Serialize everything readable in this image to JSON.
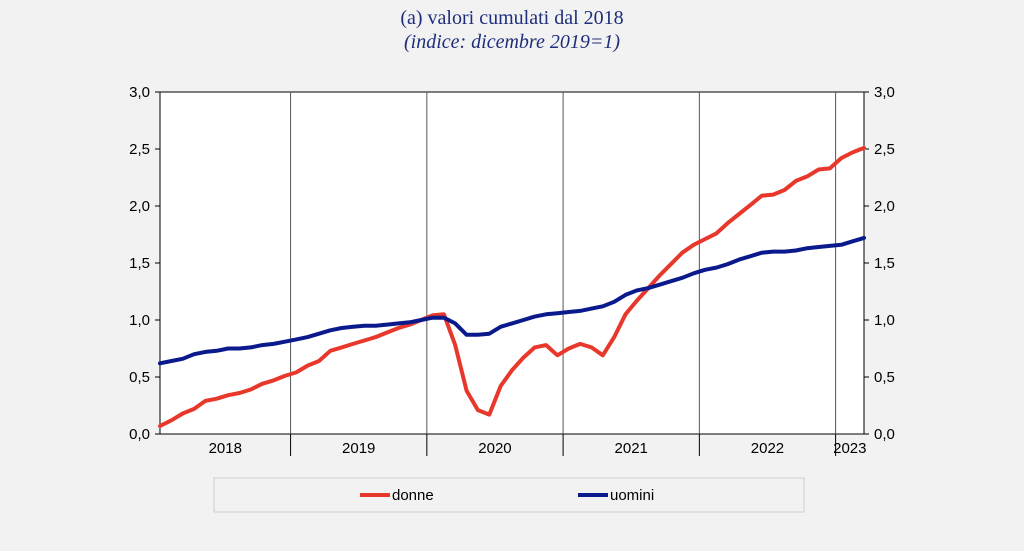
{
  "title": "(a) valori cumulati dal 2018",
  "subtitle": "(indice: dicembre 2019=1)",
  "chart_data": {
    "type": "line",
    "title": "(a) valori cumulati dal 2018",
    "subtitle": "(indice: dicembre 2019=1)",
    "xlabel": "",
    "ylabel": "",
    "x_range": [
      "2018-01",
      "2023-03"
    ],
    "ylim": [
      0,
      3
    ],
    "y_ticks": [
      "0,0",
      "0,5",
      "1,0",
      "1,5",
      "2,0",
      "2,5",
      "3,0"
    ],
    "x_tick_labels": [
      "2018",
      "2019",
      "2020",
      "2021",
      "2022",
      "2023"
    ],
    "year_boundaries": [
      "2019-01",
      "2020-01",
      "2021-01",
      "2022-01",
      "2023-01"
    ],
    "grid": false,
    "legend_position": "bottom",
    "series": [
      {
        "name": "donne",
        "color": "#e8382c",
        "points": [
          [
            "2018-01",
            0.07
          ],
          [
            "2018-02",
            0.12
          ],
          [
            "2018-03",
            0.18
          ],
          [
            "2018-04",
            0.22
          ],
          [
            "2018-05",
            0.29
          ],
          [
            "2018-06",
            0.31
          ],
          [
            "2018-07",
            0.34
          ],
          [
            "2018-08",
            0.36
          ],
          [
            "2018-09",
            0.39
          ],
          [
            "2018-10",
            0.44
          ],
          [
            "2018-11",
            0.47
          ],
          [
            "2018-12",
            0.51
          ],
          [
            "2019-01",
            0.54
          ],
          [
            "2019-02",
            0.6
          ],
          [
            "2019-03",
            0.64
          ],
          [
            "2019-04",
            0.73
          ],
          [
            "2019-05",
            0.76
          ],
          [
            "2019-06",
            0.79
          ],
          [
            "2019-07",
            0.82
          ],
          [
            "2019-08",
            0.85
          ],
          [
            "2019-09",
            0.89
          ],
          [
            "2019-10",
            0.93
          ],
          [
            "2019-11",
            0.96
          ],
          [
            "2019-12",
            1.0
          ],
          [
            "2020-01",
            1.04
          ],
          [
            "2020-02",
            1.05
          ],
          [
            "2020-03",
            0.78
          ],
          [
            "2020-04",
            0.38
          ],
          [
            "2020-05",
            0.21
          ],
          [
            "2020-06",
            0.17
          ],
          [
            "2020-07",
            0.42
          ],
          [
            "2020-08",
            0.56
          ],
          [
            "2020-09",
            0.67
          ],
          [
            "2020-10",
            0.76
          ],
          [
            "2020-11",
            0.78
          ],
          [
            "2020-12",
            0.69
          ],
          [
            "2021-01",
            0.75
          ],
          [
            "2021-02",
            0.79
          ],
          [
            "2021-03",
            0.76
          ],
          [
            "2021-04",
            0.69
          ],
          [
            "2021-05",
            0.85
          ],
          [
            "2021-06",
            1.05
          ],
          [
            "2021-07",
            1.17
          ],
          [
            "2021-08",
            1.28
          ],
          [
            "2021-09",
            1.39
          ],
          [
            "2021-10",
            1.49
          ],
          [
            "2021-11",
            1.59
          ],
          [
            "2021-12",
            1.66
          ],
          [
            "2022-01",
            1.71
          ],
          [
            "2022-02",
            1.76
          ],
          [
            "2022-03",
            1.85
          ],
          [
            "2022-04",
            1.93
          ],
          [
            "2022-05",
            2.01
          ],
          [
            "2022-06",
            2.09
          ],
          [
            "2022-07",
            2.1
          ],
          [
            "2022-08",
            2.14
          ],
          [
            "2022-09",
            2.22
          ],
          [
            "2022-10",
            2.26
          ],
          [
            "2022-11",
            2.32
          ],
          [
            "2022-12",
            2.33
          ],
          [
            "2023-01",
            2.42
          ],
          [
            "2023-02",
            2.47
          ],
          [
            "2023-03",
            2.51
          ]
        ]
      },
      {
        "name": "uomini",
        "color": "#0a1a8c",
        "points": [
          [
            "2018-01",
            0.62
          ],
          [
            "2018-02",
            0.64
          ],
          [
            "2018-03",
            0.66
          ],
          [
            "2018-04",
            0.7
          ],
          [
            "2018-05",
            0.72
          ],
          [
            "2018-06",
            0.73
          ],
          [
            "2018-07",
            0.75
          ],
          [
            "2018-08",
            0.75
          ],
          [
            "2018-09",
            0.76
          ],
          [
            "2018-10",
            0.78
          ],
          [
            "2018-11",
            0.79
          ],
          [
            "2018-12",
            0.81
          ],
          [
            "2019-01",
            0.83
          ],
          [
            "2019-02",
            0.85
          ],
          [
            "2019-03",
            0.88
          ],
          [
            "2019-04",
            0.91
          ],
          [
            "2019-05",
            0.93
          ],
          [
            "2019-06",
            0.94
          ],
          [
            "2019-07",
            0.95
          ],
          [
            "2019-08",
            0.95
          ],
          [
            "2019-09",
            0.96
          ],
          [
            "2019-10",
            0.97
          ],
          [
            "2019-11",
            0.98
          ],
          [
            "2019-12",
            1.0
          ],
          [
            "2020-01",
            1.02
          ],
          [
            "2020-02",
            1.02
          ],
          [
            "2020-03",
            0.97
          ],
          [
            "2020-04",
            0.87
          ],
          [
            "2020-05",
            0.87
          ],
          [
            "2020-06",
            0.88
          ],
          [
            "2020-07",
            0.94
          ],
          [
            "2020-08",
            0.97
          ],
          [
            "2020-09",
            1.0
          ],
          [
            "2020-10",
            1.03
          ],
          [
            "2020-11",
            1.05
          ],
          [
            "2020-12",
            1.06
          ],
          [
            "2021-01",
            1.07
          ],
          [
            "2021-02",
            1.08
          ],
          [
            "2021-03",
            1.1
          ],
          [
            "2021-04",
            1.12
          ],
          [
            "2021-05",
            1.16
          ],
          [
            "2021-06",
            1.22
          ],
          [
            "2021-07",
            1.26
          ],
          [
            "2021-08",
            1.28
          ],
          [
            "2021-09",
            1.31
          ],
          [
            "2021-10",
            1.34
          ],
          [
            "2021-11",
            1.37
          ],
          [
            "2021-12",
            1.41
          ],
          [
            "2022-01",
            1.44
          ],
          [
            "2022-02",
            1.46
          ],
          [
            "2022-03",
            1.49
          ],
          [
            "2022-04",
            1.53
          ],
          [
            "2022-05",
            1.56
          ],
          [
            "2022-06",
            1.59
          ],
          [
            "2022-07",
            1.6
          ],
          [
            "2022-08",
            1.6
          ],
          [
            "2022-09",
            1.61
          ],
          [
            "2022-10",
            1.63
          ],
          [
            "2022-11",
            1.64
          ],
          [
            "2022-12",
            1.65
          ],
          [
            "2023-01",
            1.66
          ],
          [
            "2023-02",
            1.69
          ],
          [
            "2023-03",
            1.72
          ]
        ]
      }
    ]
  }
}
